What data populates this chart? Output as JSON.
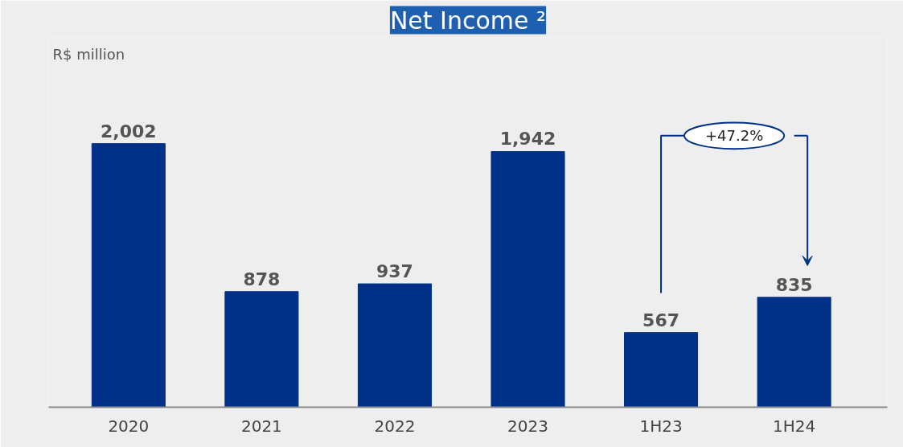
{
  "chart_data": {
    "type": "bar",
    "title": "Net Income ²",
    "categories": [
      "2020",
      "2021",
      "2022",
      "2023",
      "1H23",
      "1H24"
    ],
    "values": [
      2002,
      878,
      937,
      1942,
      567,
      835
    ],
    "value_labels": [
      "2,002",
      "878",
      "937",
      "1,942",
      "567",
      "835"
    ],
    "color": "#003087",
    "grid": false,
    "annotations": [
      "R$ million",
      "+47.2%"
    ]
  }
}
